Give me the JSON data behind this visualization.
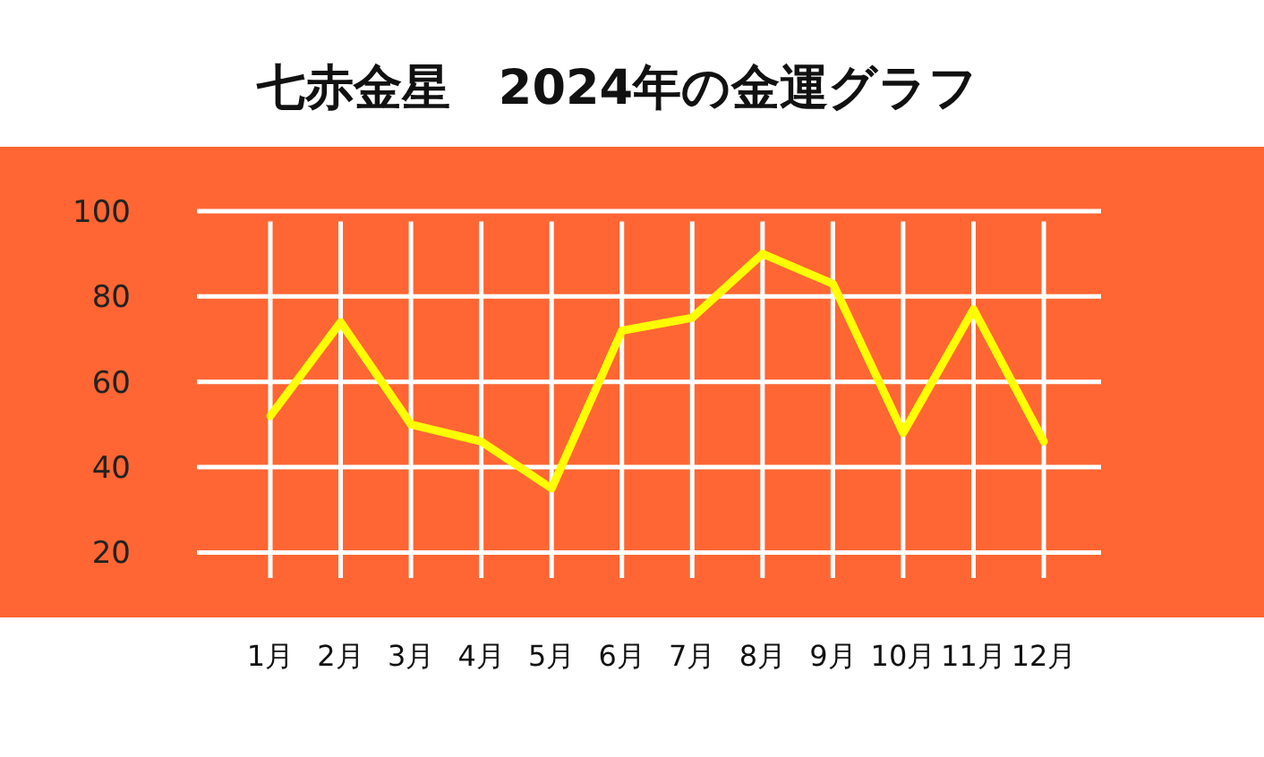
{
  "chart_data": {
    "type": "line",
    "title": "七赤金星　2024年の金運グラフ",
    "categories": [
      "1月",
      "2月",
      "3月",
      "4月",
      "5月",
      "6月",
      "7月",
      "8月",
      "9月",
      "10月",
      "11月",
      "12月"
    ],
    "series": [
      {
        "color": "#ffff00",
        "values": [
          52,
          74,
          50,
          46,
          35,
          72,
          75,
          90,
          83,
          48,
          77,
          46
        ]
      }
    ],
    "ylim": [
      14,
      100
    ],
    "yticks": [
      20,
      40,
      60,
      80,
      100
    ],
    "grid": true,
    "marker": "none",
    "line_style": "solid"
  }
}
